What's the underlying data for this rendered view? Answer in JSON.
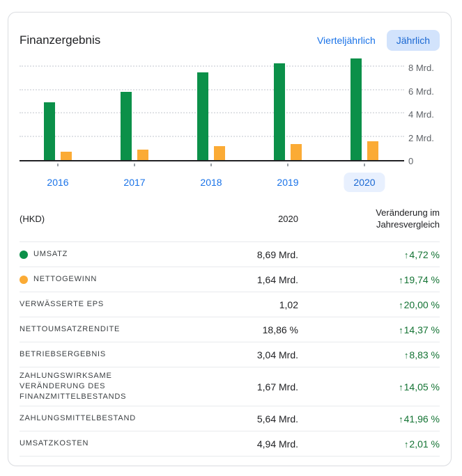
{
  "header": {
    "title": "Finanzergebnis",
    "toggle_quarterly": "Vierteljährlich",
    "toggle_annual": "Jährlich",
    "selected_toggle": "Jährlich"
  },
  "chart_data": {
    "type": "bar",
    "title": "Finanzergebnis",
    "unit": "HKD Mrd.",
    "categories": [
      "2016",
      "2017",
      "2018",
      "2019",
      "2020"
    ],
    "series": [
      {
        "name": "Umsatz",
        "color": "#0b9049",
        "values": [
          4.95,
          5.85,
          7.55,
          8.3,
          8.69
        ]
      },
      {
        "name": "Nettogewinn",
        "color": "#fbab35",
        "values": [
          0.7,
          0.9,
          1.2,
          1.37,
          1.64
        ]
      }
    ],
    "y_ticks": [
      {
        "value": 8,
        "label": "8 Mrd."
      },
      {
        "value": 6,
        "label": "6 Mrd."
      },
      {
        "value": 4,
        "label": "4 Mrd."
      },
      {
        "value": 2,
        "label": "2 Mrd."
      },
      {
        "value": 0,
        "label": "0"
      }
    ],
    "ylim": [
      0,
      8.8
    ],
    "grid": "dotted-horizontal",
    "legend_position": "table-dots",
    "selected_category": "2020"
  },
  "table": {
    "currency_header": "(HKD)",
    "period_header": "2020",
    "change_header": "Veränderung im Jahresvergleich",
    "up_arrow": "↑",
    "rows": [
      {
        "label": "UMSATZ",
        "dot_color": "#0b9049",
        "value": "8,69 Mrd.",
        "change": "4,72 %",
        "direction": "up"
      },
      {
        "label": "NETTOGEWINN",
        "dot_color": "#fbab35",
        "value": "1,64 Mrd.",
        "change": "19,74 %",
        "direction": "up"
      },
      {
        "label": "VERWÄSSERTE EPS",
        "dot_color": null,
        "value": "1,02",
        "change": "20,00 %",
        "direction": "up"
      },
      {
        "label": "NETTOUMSATZRENDITE",
        "dot_color": null,
        "value": "18,86 %",
        "change": "14,37 %",
        "direction": "up"
      },
      {
        "label": "BETRIEBSERGEBNIS",
        "dot_color": null,
        "value": "3,04 Mrd.",
        "change": "8,83 %",
        "direction": "up"
      },
      {
        "label": "ZAHLUNGSWIRKSAME VERÄNDERUNG DES FINANZMITTELBESTANDS",
        "dot_color": null,
        "value": "1,67 Mrd.",
        "change": "14,05 %",
        "direction": "up"
      },
      {
        "label": "ZAHLUNGSMITTELBESTAND",
        "dot_color": null,
        "value": "5,64 Mrd.",
        "change": "41,96 %",
        "direction": "up"
      },
      {
        "label": "UMSATZKOSTEN",
        "dot_color": null,
        "value": "4,94 Mrd.",
        "change": "2,01 %",
        "direction": "up"
      }
    ]
  },
  "colors": {
    "accent_blue": "#1a73e8",
    "chip_bg": "#d2e3fc",
    "chip_text": "#1967d2",
    "selected_year_bg": "#e8f0fe",
    "positive_green": "#137333",
    "bar_green": "#0b9049",
    "bar_orange": "#fbab35",
    "divider": "#e8eaed",
    "axis_text": "#5f6368",
    "card_border": "#dadce0"
  }
}
